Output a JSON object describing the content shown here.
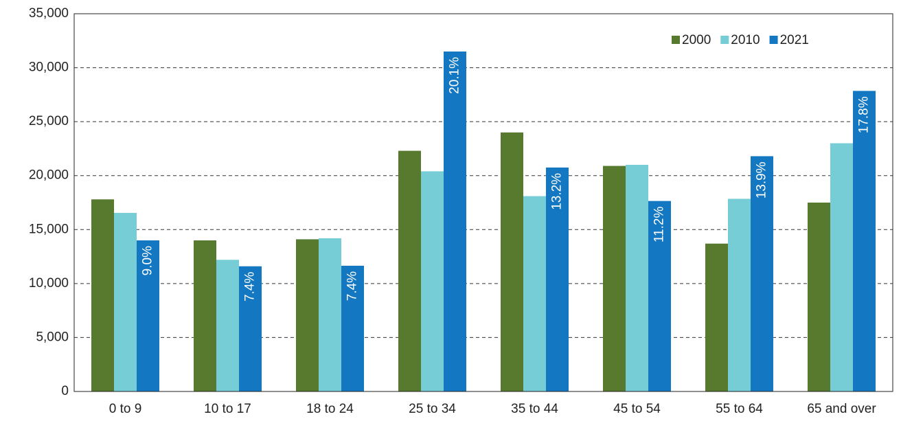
{
  "chart_data": {
    "type": "bar",
    "categories": [
      "0 to 9",
      "10 to 17",
      "18 to 24",
      "25 to 34",
      "35 to 44",
      "45 to 54",
      "55 to 64",
      "65 and over"
    ],
    "series": [
      {
        "name": "2000",
        "color": "#577a2f",
        "values": [
          17800,
          14000,
          14100,
          22300,
          24000,
          20900,
          13700,
          17500
        ]
      },
      {
        "name": "2010",
        "color": "#76cdd5",
        "values": [
          16550,
          12200,
          14200,
          20400,
          18100,
          21000,
          17850,
          23000
        ]
      },
      {
        "name": "2021",
        "color": "#1477c1",
        "values": [
          14000,
          11600,
          11650,
          31500,
          20750,
          17650,
          21800,
          27850
        ],
        "annotations": [
          "9.0%",
          "7.4%",
          "7.4%",
          "20.1%",
          "13.2%",
          "11.2%",
          "13.9%",
          "17.8%"
        ]
      }
    ],
    "ylim": [
      0,
      35000
    ],
    "yticks": [
      0,
      {
        "value": 5000,
        "label": "5,000"
      },
      {
        "value": 10000,
        "label": "10,000"
      },
      {
        "value": 15000,
        "label": "15,000"
      },
      {
        "value": 20000,
        "label": "20,000"
      },
      {
        "value": 25000,
        "label": "25,000"
      },
      {
        "value": 30000,
        "label": "30,000"
      },
      {
        "value": 35000,
        "label": "35,000"
      }
    ],
    "grid": true,
    "legend": "top-right"
  }
}
